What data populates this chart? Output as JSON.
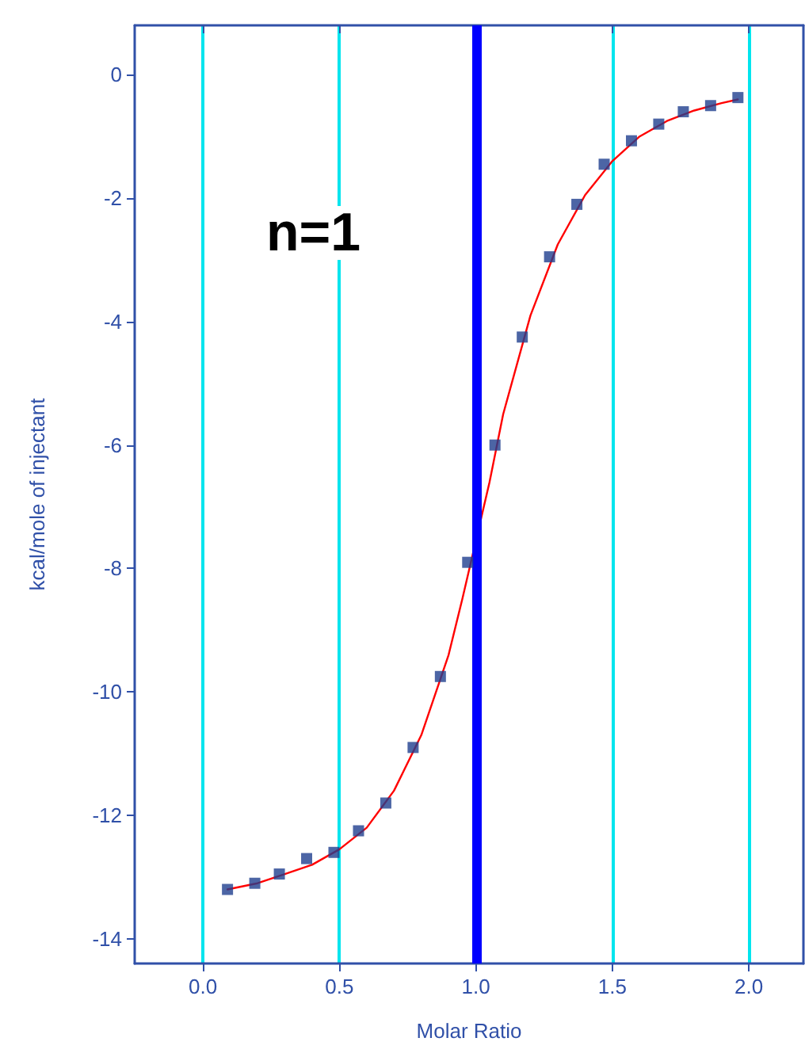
{
  "chart_data": {
    "type": "scatter",
    "xlabel": "Molar Ratio",
    "ylabel": "kcal/mole of injectant",
    "annotations": [
      "n=1"
    ],
    "series": [
      {
        "color": "#1f3f8f",
        "marker": "square",
        "x": [
          0.09,
          0.19,
          0.28,
          0.38,
          0.48,
          0.57,
          0.67,
          0.77,
          0.87,
          0.97,
          1.07,
          1.17,
          1.27,
          1.37,
          1.47,
          1.57,
          1.67,
          1.76,
          1.86,
          1.96
        ],
        "values": [
          -13.2,
          -13.1,
          -12.95,
          -12.7,
          -12.6,
          -12.25,
          -11.8,
          -10.9,
          -9.75,
          -7.9,
          -6.0,
          -4.25,
          -2.95,
          -2.1,
          -1.45,
          -1.07,
          -0.8,
          -0.6,
          -0.5,
          -0.37
        ]
      },
      {
        "type": "line",
        "color": "#ff0000",
        "marker": "none",
        "x": [
          0.09,
          0.2,
          0.3,
          0.4,
          0.5,
          0.6,
          0.7,
          0.8,
          0.9,
          0.95,
          1.05,
          1.1,
          1.2,
          1.3,
          1.4,
          1.5,
          1.6,
          1.7,
          1.8,
          1.9,
          1.96
        ],
        "values": [
          -13.2,
          -13.1,
          -12.95,
          -12.8,
          -12.55,
          -12.2,
          -11.6,
          -10.7,
          -9.4,
          -8.5,
          -6.6,
          -5.5,
          -3.9,
          -2.75,
          -1.95,
          -1.4,
          -1.0,
          -0.75,
          -0.58,
          -0.46,
          -0.4
        ]
      }
    ],
    "ref_lines": [
      {
        "axis": "x",
        "value": 1.0,
        "color": "#0000ff"
      }
    ],
    "grid": "x",
    "xlim": [
      -0.25,
      2.2
    ],
    "xticks": [
      {
        "value": 0,
        "label": "0.0"
      },
      0.5,
      {
        "value": 1,
        "label": "1.0"
      },
      1.5,
      {
        "value": 2,
        "label": "2.0"
      }
    ],
    "ylim": [
      -14.4,
      0.8
    ],
    "yticks": [
      -14,
      -12,
      -10,
      -8,
      -6,
      -4,
      -2,
      0
    ]
  }
}
